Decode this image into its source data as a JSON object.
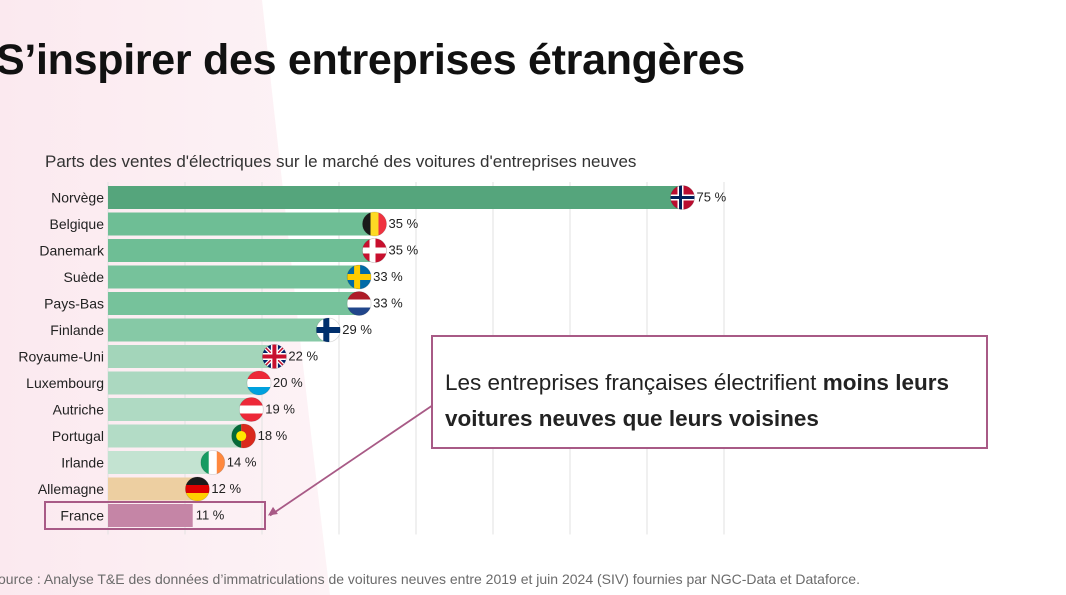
{
  "slide": {
    "title": "S’inspirer des entreprises étrangères",
    "source": "ource : Analyse T&E des données d’immatriculations de voitures neuves entre 2019 et juin 2024 (SIV) fournies par NGC-Data et Dataforce."
  },
  "callout": {
    "text_regular": "Les entreprises françaises électrifient ",
    "text_bold": "moins leurs voitures neuves que leurs voisines"
  },
  "colors": {
    "norway": "#55a57c",
    "others_dark": "#6ebe95",
    "others_light": "#cfe8da",
    "germany": "#edcfa1",
    "france": "#c585a6",
    "highlight": "#a85a86"
  },
  "chart_data": {
    "type": "bar",
    "orientation": "horizontal",
    "title": "Parts des ventes d'électriques sur le marché des voitures d'entreprises neuves",
    "categories": [
      "Norvège",
      "Belgique",
      "Danemark",
      "Suède",
      "Pays-Bas",
      "Finlande",
      "Royaume-Uni",
      "Luxembourg",
      "Autriche",
      "Portugal",
      "Irlande",
      "Allemagne",
      "France"
    ],
    "values": [
      75,
      35,
      35,
      33,
      33,
      29,
      22,
      20,
      19,
      18,
      14,
      12,
      11
    ],
    "value_labels": [
      "75 %",
      "35 %",
      "35 %",
      "33 %",
      "33 %",
      "29 %",
      "22 %",
      "20 %",
      "19 %",
      "18 %",
      "14 %",
      "12 %",
      "11 %"
    ],
    "flags": [
      "norway",
      "belgium",
      "denmark",
      "sweden",
      "netherlands",
      "finland",
      "united-kingdom",
      "luxembourg",
      "austria",
      "portugal",
      "ireland",
      "germany",
      "france"
    ],
    "highlighted_category": "France",
    "xlim": [
      0,
      80
    ],
    "grid": "vertical",
    "unit": "%"
  }
}
